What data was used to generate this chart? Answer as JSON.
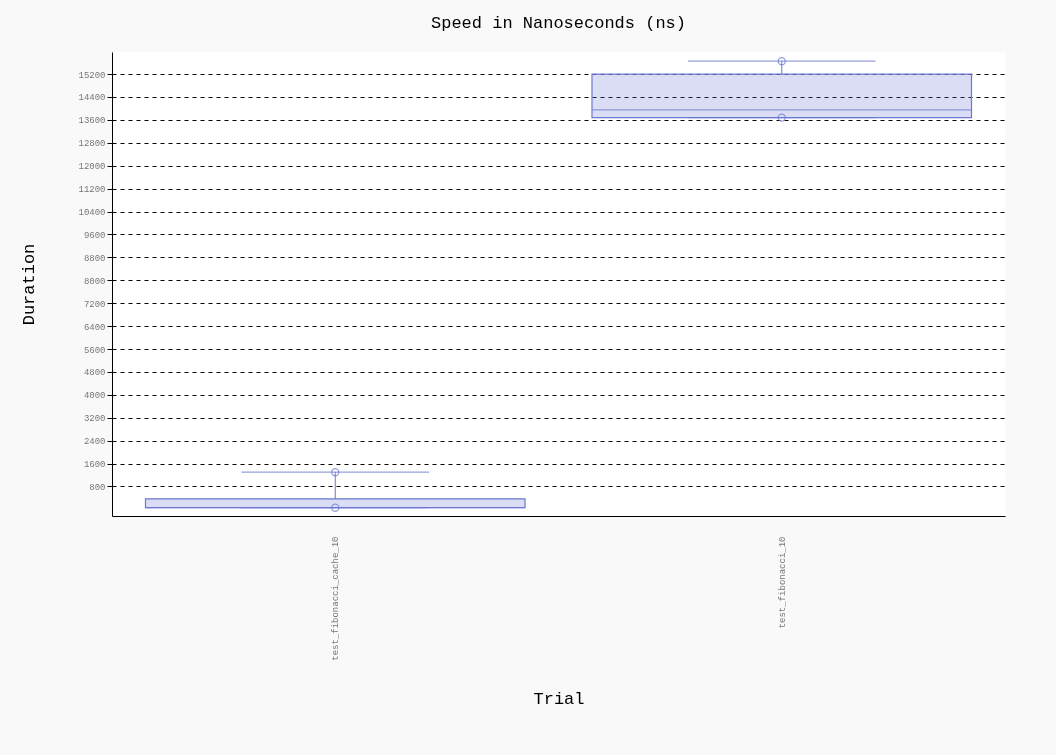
{
  "chart_data": {
    "type": "box",
    "title": "Speed in Nanoseconds (ns)",
    "xlabel": "Trial",
    "ylabel": "Duration",
    "categories": [
      "test_fibonacci_cache_10",
      "test_fibonacci_10"
    ],
    "color": "#6b78d0",
    "boxes": [
      {
        "low": 60,
        "q1": 60,
        "median": 60,
        "q3": 370,
        "high": 1300,
        "outliers": [
          60,
          1300
        ]
      },
      {
        "low": 13680,
        "q1": 13680,
        "median": 13950,
        "q3": 15200,
        "high": 15650,
        "outliers": [
          13680,
          15650
        ]
      }
    ],
    "ylim": [
      -230,
      15970
    ],
    "yticks": [
      800,
      1600,
      2400,
      3200,
      4000,
      4800,
      5600,
      6400,
      7200,
      8000,
      8800,
      9600,
      10400,
      11200,
      12000,
      12800,
      13600,
      14400,
      15200
    ],
    "grid": "y"
  }
}
